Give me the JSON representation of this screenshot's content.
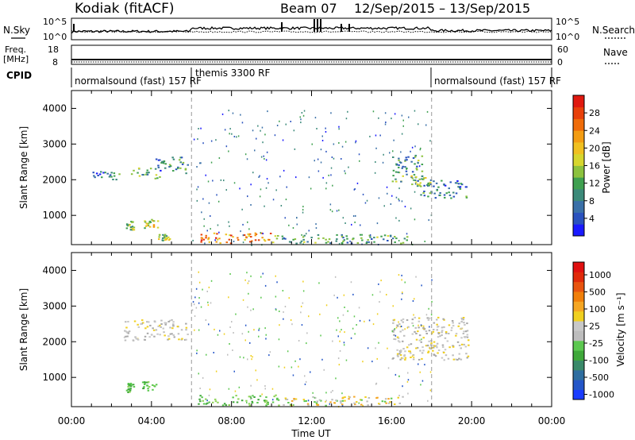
{
  "header": {
    "station": "Kodiak (fitACF)",
    "beam": "Beam 07",
    "date_range": "12/Sep/2015 – 13/Sep/2015"
  },
  "top_panels": {
    "nsky_label": "N.Sky",
    "nsky_ticks": [
      "10^5",
      "10^0"
    ],
    "nsearch_label": "N.Search",
    "freq_label": "Freq.",
    "freq_unit": "[MHz]",
    "freq_ticks": [
      "18",
      "8"
    ],
    "nave_label": "Nave",
    "nave_ticks": [
      "60",
      "0"
    ],
    "cpid_label": "CPID",
    "cpid_segments": [
      {
        "label": "normalsound (fast) 157 RF",
        "start": 0,
        "end": 6
      },
      {
        "label": "themis 3300 RF",
        "start": 6,
        "end": 18
      },
      {
        "label": "normalsound (fast) 157 RF",
        "start": 18,
        "end": 24
      }
    ]
  },
  "chart_data": [
    {
      "type": "heatmap",
      "name": "power",
      "ylabel": "Slant Range [km]",
      "ylim": [
        180,
        4500
      ],
      "yticks": [
        1000,
        2000,
        3000,
        4000
      ],
      "xlim": [
        0,
        24
      ],
      "xticks": [
        "00:00",
        "04:00",
        "08:00",
        "12:00",
        "16:00",
        "20:00",
        "00:00"
      ],
      "colorbar": {
        "label": "Power [dB]",
        "range": [
          0,
          32
        ],
        "ticks": [
          "4",
          "8",
          "12",
          "16",
          "20",
          "24",
          "28"
        ],
        "colors": [
          "#1a1aff",
          "#2a52be",
          "#3a70a8",
          "#3c8a7a",
          "#3fa050",
          "#8cc23e",
          "#d6d62e",
          "#f0c020",
          "#f39c12",
          "#ef6c0a",
          "#e8400a",
          "#e0190f"
        ]
      },
      "echo_regions": [
        {
          "t0": 1.0,
          "t1": 2.4,
          "r0": 2000,
          "r1": 2250,
          "level": 0.2
        },
        {
          "t0": 2.9,
          "t1": 4.4,
          "r0": 2050,
          "r1": 2350,
          "level": 0.35
        },
        {
          "t0": 4.2,
          "t1": 5.8,
          "r0": 2200,
          "r1": 2650,
          "level": 0.25
        },
        {
          "t0": 2.7,
          "t1": 3.1,
          "r0": 600,
          "r1": 850,
          "level": 0.45
        },
        {
          "t0": 3.6,
          "t1": 4.3,
          "r0": 650,
          "r1": 900,
          "level": 0.55
        },
        {
          "t0": 4.3,
          "t1": 4.9,
          "r0": 300,
          "r1": 480,
          "level": 0.45
        },
        {
          "t0": 6.3,
          "t1": 10.2,
          "r0": 230,
          "r1": 520,
          "level": 0.75
        },
        {
          "t0": 10.2,
          "t1": 16.8,
          "r0": 230,
          "r1": 480,
          "level": 0.3
        },
        {
          "t0": 16.0,
          "t1": 17.6,
          "r0": 1950,
          "r1": 2700,
          "level": 0.3
        },
        {
          "t0": 17.4,
          "t1": 19.8,
          "r0": 1500,
          "r1": 2000,
          "level": 0.2
        },
        {
          "t0": 16.8,
          "t1": 18.0,
          "r0": 1800,
          "r1": 2150,
          "level": 0.4
        }
      ]
    },
    {
      "type": "heatmap",
      "name": "velocity",
      "ylabel": "Slant Range [km]",
      "ylim": [
        180,
        4500
      ],
      "yticks": [
        1000,
        2000,
        3000,
        4000
      ],
      "xlim": [
        0,
        24
      ],
      "xticks": [
        "00:00",
        "04:00",
        "08:00",
        "12:00",
        "16:00",
        "20:00",
        "00:00"
      ],
      "xlabel": "Time UT",
      "colorbar": {
        "label": "Velocity [m s⁻¹]",
        "ticks": [
          "1000",
          "500",
          "100",
          "25",
          "-25",
          "-100",
          "-500",
          "-1000"
        ],
        "colors": [
          "#1a3cff",
          "#2456c8",
          "#2f6ea0",
          "#3a8a6a",
          "#3fa83a",
          "#5cc850",
          "#bdbdbd",
          "#c8c8c8",
          "#f0d020",
          "#f5a623",
          "#f07f0a",
          "#e8540f",
          "#e02a0a",
          "#e01010"
        ]
      },
      "echo_regions": [
        {
          "t0": 2.6,
          "t1": 3.1,
          "r0": 600,
          "r1": 850,
          "kind": "green"
        },
        {
          "t0": 3.5,
          "t1": 4.2,
          "r0": 650,
          "r1": 900,
          "kind": "green"
        },
        {
          "t0": 6.3,
          "t1": 10.5,
          "r0": 230,
          "r1": 520,
          "kind": "green"
        },
        {
          "t0": 2.6,
          "t1": 5.8,
          "r0": 2050,
          "r1": 2650,
          "kind": "grey"
        },
        {
          "t0": 10.5,
          "t1": 16.8,
          "r0": 230,
          "r1": 480,
          "kind": "yellow"
        },
        {
          "t0": 16.0,
          "t1": 19.8,
          "r0": 1500,
          "r1": 2700,
          "kind": "grey"
        }
      ]
    }
  ]
}
